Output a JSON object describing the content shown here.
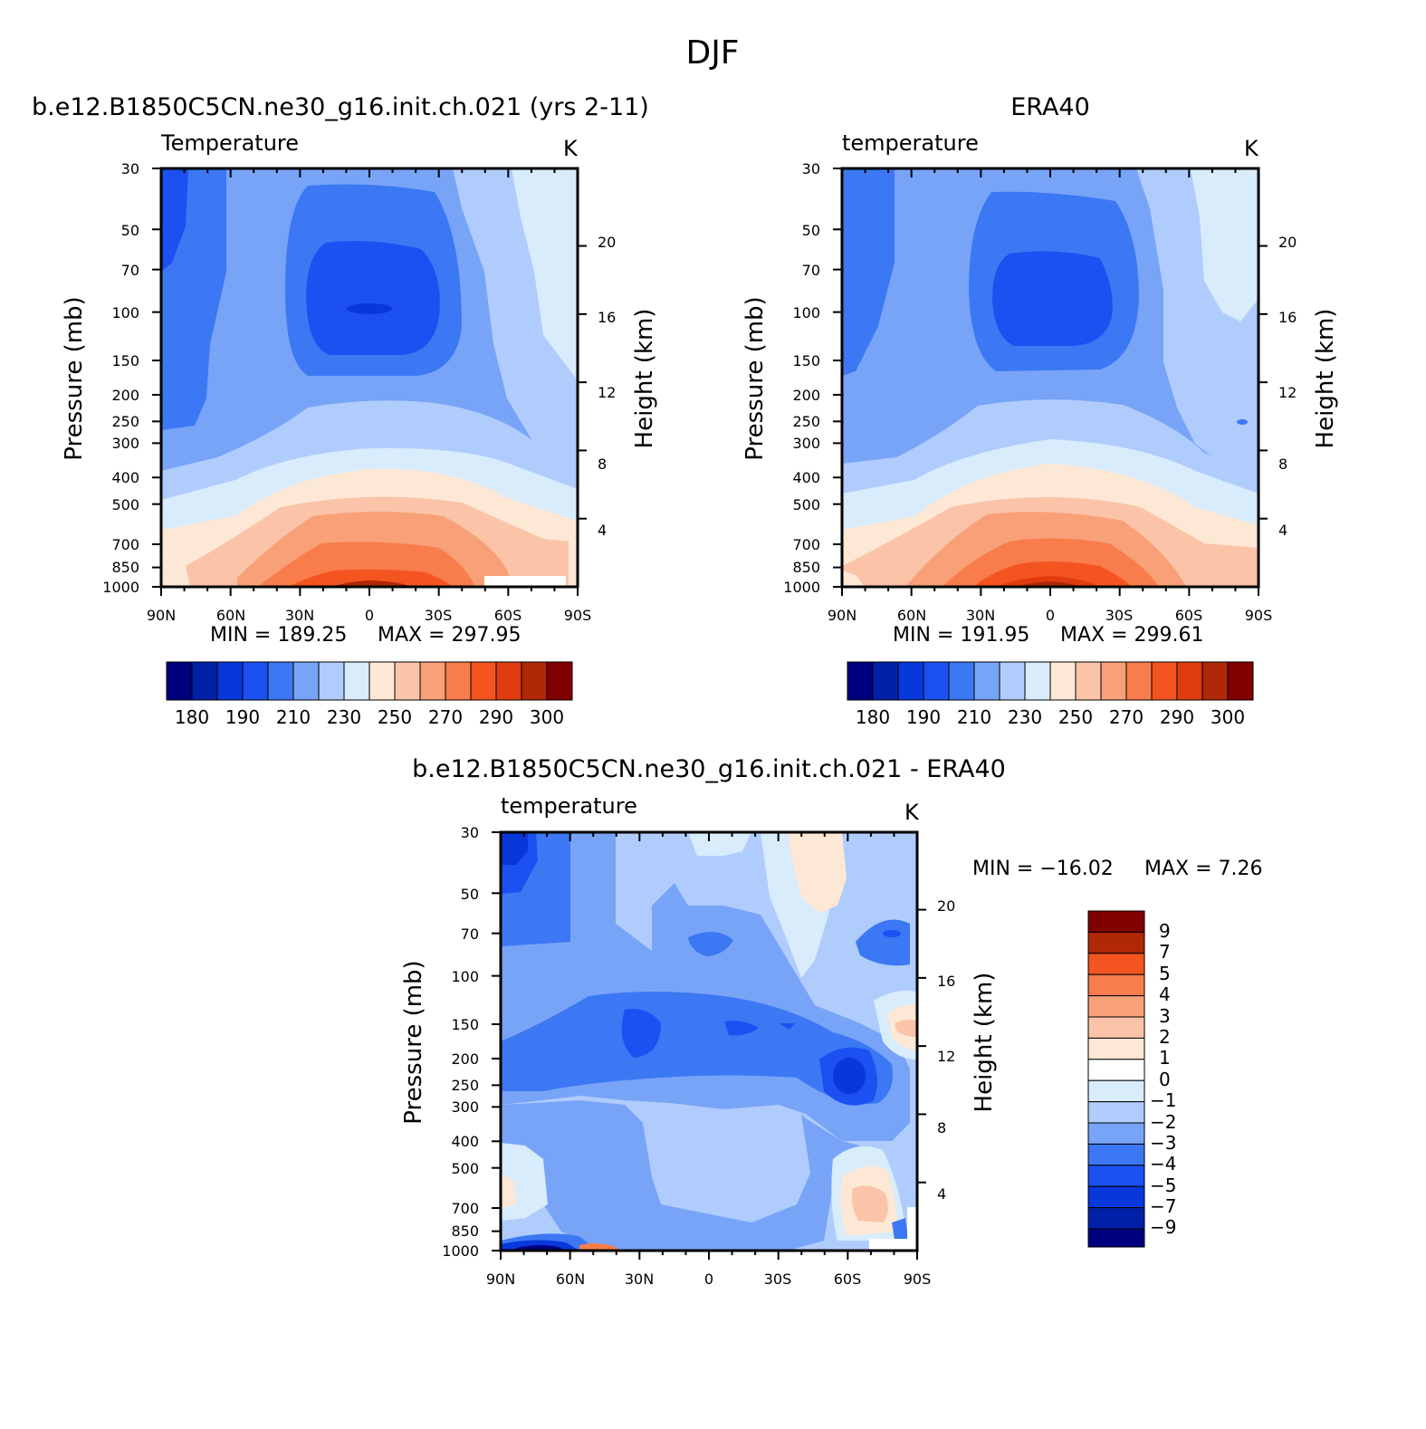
{
  "figure": {
    "title": "DJF"
  },
  "colors": {
    "abs_levels": [
      "#00007f",
      "#0020a8",
      "#0838dc",
      "#1c50f0",
      "#3c78f4",
      "#78a4f8",
      "#b0ccfc",
      "#d8ecfc",
      "#fde8d6",
      "#fbc4a8",
      "#f8a078",
      "#f87c4c",
      "#f45420",
      "#e03c10",
      "#b02808",
      "#800000"
    ],
    "diff_levels": [
      "#00007f",
      "#0020a8",
      "#0838dc",
      "#1c50f0",
      "#3c78f4",
      "#78a4f8",
      "#b0ccfc",
      "#d8ecfc",
      "#fde8d6",
      "#fbc4a8",
      "#f8a078",
      "#f87c4c",
      "#f45420",
      "#b02808",
      "#800000"
    ]
  },
  "chart_data": [
    {
      "type": "heatmap",
      "title": "b.e12.B1850C5CN.ne30_g16.init.ch.021 (yrs 2-11)",
      "subtitle": "Temperature",
      "units": "K",
      "xlabel": "",
      "ylabel": "Pressure (mb)",
      "ylabel_right": "Height (km)",
      "x_ticks": [
        "90N",
        "60N",
        "30N",
        "0",
        "30S",
        "60S",
        "90S"
      ],
      "y_ticks": [
        30,
        50,
        70,
        100,
        150,
        200,
        250,
        300,
        400,
        500,
        700,
        850,
        1000
      ],
      "y_right_ticks": [
        4,
        8,
        12,
        16,
        20
      ],
      "ylim": [
        1000,
        30
      ],
      "xlim": [
        90,
        -90
      ],
      "min_label": "MIN = 189.25",
      "max_label": "MAX = 297.95",
      "min": 189.25,
      "max": 297.95,
      "colorbar_labels": [
        "180",
        "190",
        "210",
        "230",
        "250",
        "270",
        "290",
        "300"
      ],
      "colorbar_levels": [
        180,
        185,
        190,
        200,
        210,
        220,
        230,
        240,
        250,
        260,
        270,
        280,
        290,
        295,
        300
      ]
    },
    {
      "type": "heatmap",
      "title": "ERA40",
      "subtitle": "temperature",
      "units": "K",
      "xlabel": "",
      "ylabel": "Pressure (mb)",
      "ylabel_right": "Height (km)",
      "x_ticks": [
        "90N",
        "60N",
        "30N",
        "0",
        "30S",
        "60S",
        "90S"
      ],
      "y_ticks": [
        30,
        50,
        70,
        100,
        150,
        200,
        250,
        300,
        400,
        500,
        700,
        850,
        1000
      ],
      "y_right_ticks": [
        4,
        8,
        12,
        16,
        20
      ],
      "ylim": [
        1000,
        30
      ],
      "xlim": [
        90,
        -90
      ],
      "min_label": "MIN = 191.95",
      "max_label": "MAX = 299.61",
      "min": 191.95,
      "max": 299.61,
      "colorbar_labels": [
        "180",
        "190",
        "210",
        "230",
        "250",
        "270",
        "290",
        "300"
      ],
      "colorbar_levels": [
        180,
        185,
        190,
        200,
        210,
        220,
        230,
        240,
        250,
        260,
        270,
        280,
        290,
        295,
        300
      ]
    },
    {
      "type": "heatmap",
      "title": "b.e12.B1850C5CN.ne30_g16.init.ch.021 - ERA40",
      "subtitle": "temperature",
      "units": "K",
      "xlabel": "",
      "ylabel": "Pressure (mb)",
      "ylabel_right": "Height (km)",
      "x_ticks": [
        "90N",
        "60N",
        "30N",
        "0",
        "30S",
        "60S",
        "90S"
      ],
      "y_ticks": [
        30,
        50,
        70,
        100,
        150,
        200,
        250,
        300,
        400,
        500,
        700,
        850,
        1000
      ],
      "y_right_ticks": [
        4,
        8,
        12,
        16,
        20
      ],
      "ylim": [
        1000,
        30
      ],
      "xlim": [
        90,
        -90
      ],
      "min_label": "MIN = −16.02",
      "max_label": "MAX = 7.26",
      "min": -16.02,
      "max": 7.26,
      "colorbar_labels": [
        "9",
        "7",
        "5",
        "4",
        "3",
        "2",
        "1",
        "0",
        "−1",
        "−2",
        "−3",
        "−4",
        "−5",
        "−7",
        "−9"
      ],
      "colorbar_levels": [
        9,
        7,
        5,
        4,
        3,
        2,
        1,
        0,
        -1,
        -2,
        -3,
        -4,
        -5,
        -7,
        -9
      ]
    }
  ]
}
